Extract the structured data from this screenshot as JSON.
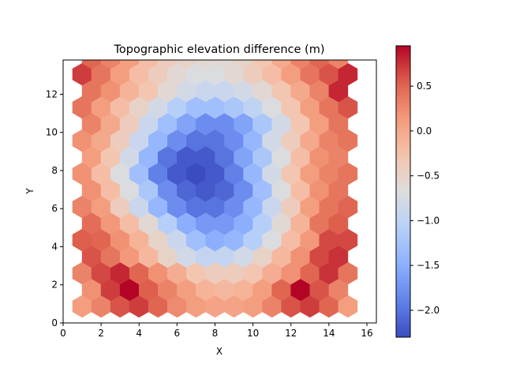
{
  "chart_data": {
    "type": "heatmap",
    "subtype": "hexbin",
    "title": "Topographic elevation difference (m)",
    "xlabel": "X",
    "ylabel": "Y",
    "xlim": [
      0,
      16.5
    ],
    "ylim": [
      0,
      13.8
    ],
    "xticks": [
      0,
      2,
      4,
      6,
      8,
      10,
      12,
      14,
      16
    ],
    "yticks": [
      0,
      2,
      4,
      6,
      8,
      10,
      12
    ],
    "colormap": "coolwarm",
    "color_range": [
      -2.3,
      0.95
    ],
    "colorbar_ticks": [
      0.5,
      0.0,
      -0.5,
      -1.0,
      -1.5,
      -2.0
    ],
    "colorbar_tick_labels": [
      "0.5",
      "0.0",
      "−0.5",
      "−1.0",
      "−1.5",
      "−2.0"
    ],
    "grid": false,
    "hex_layout": {
      "even_row_x0": 1.0,
      "odd_row_x0": 1.5,
      "dx": 1.0,
      "y0": 0.87,
      "dy": 0.87,
      "cols": [
        15,
        14
      ]
    },
    "rows": [
      [
        0.1,
        0.3,
        0.6,
        0.7,
        0.5,
        0.25,
        0.1,
        0.05,
        0.05,
        0.1,
        0.3,
        0.6,
        0.7,
        0.5,
        0.1
      ],
      [
        0.2,
        0.7,
        0.95,
        0.55,
        0.3,
        0.1,
        -0.1,
        -0.15,
        -0.1,
        0.1,
        0.5,
        0.95,
        0.6,
        0.3
      ],
      [
        0.3,
        0.65,
        0.8,
        0.5,
        0.2,
        -0.05,
        -0.3,
        -0.4,
        -0.4,
        -0.3,
        -0.05,
        0.2,
        0.5,
        0.75,
        0.4
      ],
      [
        0.6,
        0.4,
        0.15,
        -0.15,
        -0.5,
        -0.8,
        -0.95,
        -0.95,
        -0.8,
        -0.5,
        -0.15,
        0.2,
        0.65,
        0.75
      ],
      [
        0.55,
        0.5,
        0.2,
        -0.1,
        -0.5,
        -0.9,
        -1.3,
        -1.5,
        -1.4,
        -1.1,
        -0.7,
        -0.2,
        0.15,
        0.65,
        0.65
      ],
      [
        0.45,
        0.15,
        -0.2,
        -0.6,
        -1.1,
        -1.5,
        -1.7,
        -1.7,
        -1.5,
        -1.1,
        -0.6,
        -0.1,
        0.4,
        0.55
      ],
      [
        0.3,
        0.1,
        -0.4,
        -0.9,
        -1.4,
        -1.8,
        -2.0,
        -2.0,
        -1.8,
        -1.4,
        -0.9,
        -0.4,
        0.1,
        0.4,
        0.5
      ],
      [
        0.2,
        -0.2,
        -0.7,
        -1.2,
        -1.8,
        -2.1,
        -2.2,
        -2.1,
        -1.8,
        -1.3,
        -0.7,
        -0.2,
        0.2,
        0.4
      ],
      [
        0.2,
        -0.2,
        -0.7,
        -1.3,
        -1.9,
        -2.2,
        -2.3,
        -2.2,
        -1.9,
        -1.4,
        -0.8,
        -0.3,
        0.1,
        0.3,
        0.4
      ],
      [
        0.1,
        -0.3,
        -0.8,
        -1.4,
        -2.0,
        -2.2,
        -2.2,
        -2.0,
        -1.6,
        -1.2,
        -0.7,
        -0.2,
        0.2,
        0.3
      ],
      [
        0.2,
        0.0,
        -0.4,
        -0.9,
        -1.4,
        -1.8,
        -2.0,
        -2.0,
        -1.8,
        -1.4,
        -0.8,
        -0.4,
        0.0,
        0.3,
        0.4
      ],
      [
        0.3,
        0.0,
        -0.4,
        -0.9,
        -1.3,
        -1.6,
        -1.8,
        -1.8,
        -1.6,
        -1.2,
        -0.8,
        -0.3,
        0.1,
        0.4
      ],
      [
        0.4,
        0.1,
        -0.2,
        -0.5,
        -0.8,
        -1.1,
        -1.3,
        -1.3,
        -1.2,
        -1.0,
        -0.7,
        -0.3,
        0.1,
        0.4,
        0.6
      ],
      [
        0.4,
        0.2,
        -0.1,
        -0.3,
        -0.6,
        -0.8,
        -0.9,
        -0.9,
        -0.8,
        -0.6,
        -0.3,
        0.0,
        0.3,
        0.8
      ],
      [
        0.7,
        0.4,
        0.1,
        -0.2,
        -0.4,
        -0.6,
        -0.7,
        -0.7,
        -0.6,
        -0.4,
        -0.2,
        0.1,
        0.4,
        0.6,
        0.8
      ],
      [
        0.5,
        0.3,
        0.1,
        -0.2,
        -0.4,
        -0.5,
        -0.6,
        -0.6,
        -0.5,
        -0.3,
        0.0,
        0.3,
        0.5,
        0.3
      ]
    ]
  }
}
